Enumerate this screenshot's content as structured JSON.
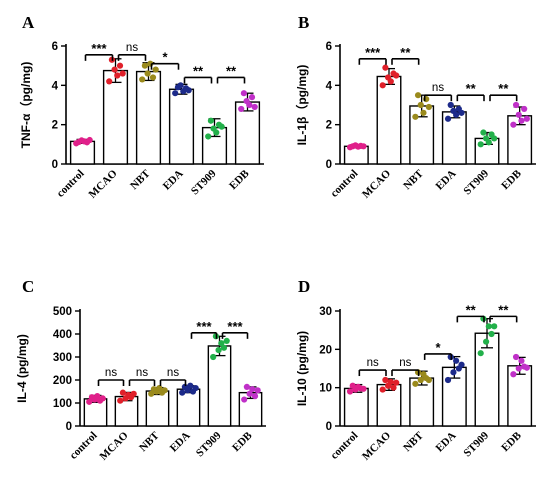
{
  "chart_data": [
    {
      "type": "bar",
      "panel": "A",
      "ylabel": "TNF-α（pg/mg)",
      "ylim": [
        0,
        6
      ],
      "yticks": [
        0,
        2,
        4,
        6
      ],
      "categories": [
        "control",
        "MCAO",
        "NBT",
        "EDA",
        "ST909",
        "EDB"
      ],
      "values": [
        1.15,
        4.75,
        4.7,
        3.8,
        1.85,
        3.15
      ],
      "errors": [
        0.1,
        0.6,
        0.45,
        0.25,
        0.45,
        0.45
      ],
      "point_colors": [
        "#e0208a",
        "#e0202a",
        "#9a8a1c",
        "#1c2a8a",
        "#22b04a",
        "#c030c8"
      ],
      "points": [
        [
          1.05,
          1.12,
          1.2,
          1.15,
          1.1,
          1.22
        ],
        [
          4.2,
          5.3,
          4.8,
          4.5,
          5.0,
          4.6
        ],
        [
          4.3,
          5.0,
          4.6,
          5.1,
          4.4,
          4.8
        ],
        [
          3.6,
          3.9,
          4.0,
          3.7,
          3.85,
          3.75
        ],
        [
          1.4,
          2.2,
          1.8,
          1.6,
          2.0,
          1.9
        ],
        [
          2.8,
          3.6,
          3.2,
          3.0,
          3.4,
          2.9
        ]
      ],
      "comparisons": [
        {
          "from": 0,
          "to": 1,
          "label": "***",
          "y": 5.55
        },
        {
          "from": 1,
          "to": 2,
          "label": "ns",
          "y": 5.55
        },
        {
          "from": 2,
          "to": 3,
          "label": "*",
          "y": 5.1
        },
        {
          "from": 3,
          "to": 4,
          "label": "**",
          "y": 4.4
        },
        {
          "from": 4,
          "to": 5,
          "label": "**",
          "y": 4.4
        }
      ]
    },
    {
      "type": "bar",
      "panel": "B",
      "ylabel": "IL-1β（pg/mg)",
      "ylim": [
        0,
        6
      ],
      "yticks": [
        0,
        2,
        4,
        6
      ],
      "categories": [
        "control",
        "MCAO",
        "NBT",
        "EDA",
        "ST909",
        "EDB"
      ],
      "values": [
        0.9,
        4.45,
        2.95,
        2.65,
        1.3,
        2.45
      ],
      "errors": [
        0.08,
        0.4,
        0.55,
        0.3,
        0.3,
        0.45
      ],
      "point_colors": [
        "#e0208a",
        "#e0202a",
        "#9a8a1c",
        "#1c2a8a",
        "#22b04a",
        "#c030c8"
      ],
      "points": [
        [
          0.85,
          0.9,
          0.95,
          0.88,
          0.92,
          0.9
        ],
        [
          4.0,
          4.9,
          4.4,
          4.2,
          4.6,
          4.5
        ],
        [
          2.4,
          3.5,
          3.0,
          2.6,
          3.3,
          2.9
        ],
        [
          2.3,
          3.0,
          2.7,
          2.5,
          2.8,
          2.6
        ],
        [
          1.0,
          1.6,
          1.3,
          1.1,
          1.5,
          1.3
        ],
        [
          2.0,
          3.0,
          2.5,
          2.2,
          2.8,
          2.3
        ]
      ],
      "comparisons": [
        {
          "from": 0,
          "to": 1,
          "label": "***",
          "y": 5.35
        },
        {
          "from": 1,
          "to": 2,
          "label": "**",
          "y": 5.35
        },
        {
          "from": 2,
          "to": 3,
          "label": "ns",
          "y": 3.5
        },
        {
          "from": 3,
          "to": 4,
          "label": "**",
          "y": 3.5
        },
        {
          "from": 4,
          "to": 5,
          "label": "**",
          "y": 3.5
        }
      ]
    },
    {
      "type": "bar",
      "panel": "C",
      "ylabel": "IL-4 (pg/mg)",
      "ylim": [
        0,
        500
      ],
      "yticks": [
        0,
        100,
        200,
        300,
        400,
        500
      ],
      "categories": [
        "control",
        "MCAO",
        "NBT",
        "EDA",
        "ST909",
        "EDB"
      ],
      "values": [
        118,
        128,
        152,
        160,
        348,
        145
      ],
      "errors": [
        15,
        18,
        15,
        15,
        42,
        25
      ],
      "point_colors": [
        "#e0208a",
        "#e0202a",
        "#9a8a1c",
        "#1c2a8a",
        "#22b04a",
        "#c030c8"
      ],
      "points": [
        [
          105,
          125,
          115,
          130,
          110,
          120
        ],
        [
          110,
          145,
          120,
          135,
          125,
          140
        ],
        [
          140,
          160,
          150,
          165,
          145,
          155
        ],
        [
          145,
          170,
          155,
          175,
          150,
          165
        ],
        [
          300,
          390,
          330,
          360,
          340,
          370
        ],
        [
          115,
          170,
          140,
          160,
          130,
          155
        ]
      ],
      "comparisons": [
        {
          "from": 0,
          "to": 1,
          "label": "ns",
          "y": 200
        },
        {
          "from": 1,
          "to": 2,
          "label": "ns",
          "y": 200
        },
        {
          "from": 2,
          "to": 3,
          "label": "ns",
          "y": 200
        },
        {
          "from": 3,
          "to": 4,
          "label": "***",
          "y": 405
        },
        {
          "from": 4,
          "to": 5,
          "label": "***",
          "y": 405
        }
      ]
    },
    {
      "type": "bar",
      "panel": "D",
      "ylabel": "IL-10 (pg/mg)",
      "ylim": [
        0,
        30
      ],
      "yticks": [
        0,
        10,
        20,
        30
      ],
      "categories": [
        "control",
        "MCAO",
        "NBT",
        "EDA",
        "ST909",
        "EDB"
      ],
      "values": [
        9.8,
        10.8,
        12.5,
        15.3,
        24.2,
        15.7
      ],
      "errors": [
        1.0,
        1.5,
        1.8,
        2.8,
        3.8,
        2.2
      ],
      "point_colors": [
        "#e0208a",
        "#e0202a",
        "#9a8a1c",
        "#1c2a8a",
        "#22b04a",
        "#c030c8"
      ],
      "points": [
        [
          9.0,
          10.5,
          9.5,
          10.2,
          9.8,
          9.7
        ],
        [
          9.5,
          12.0,
          10.5,
          11.5,
          10.0,
          11.3
        ],
        [
          11.0,
          14.0,
          12.0,
          13.5,
          12.5,
          12.0
        ],
        [
          12.0,
          18.0,
          14.0,
          17.0,
          15.0,
          16.0
        ],
        [
          19.0,
          28.0,
          22.0,
          26.0,
          24.0,
          26.0
        ],
        [
          13.5,
          18.0,
          15.0,
          17.0,
          15.5,
          15.2
        ]
      ],
      "comparisons": [
        {
          "from": 0,
          "to": 1,
          "label": "ns",
          "y": 14.6
        },
        {
          "from": 1,
          "to": 2,
          "label": "ns",
          "y": 14.6
        },
        {
          "from": 2,
          "to": 3,
          "label": "*",
          "y": 18.8
        },
        {
          "from": 3,
          "to": 4,
          "label": "**",
          "y": 28.6
        },
        {
          "from": 4,
          "to": 5,
          "label": "**",
          "y": 28.6
        }
      ]
    }
  ]
}
